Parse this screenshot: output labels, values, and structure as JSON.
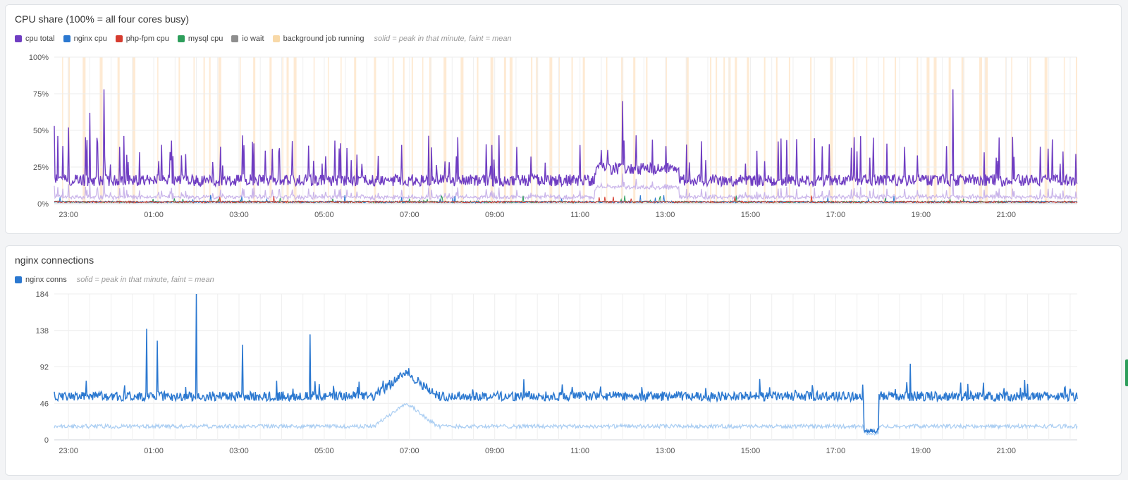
{
  "chart_data": [
    {
      "type": "line",
      "title": "CPU share (100% = all four cores busy)",
      "legend_note": "solid = peak in that minute, faint = mean",
      "legend": [
        {
          "name": "cpu total",
          "color": "#6f3dc2"
        },
        {
          "name": "nginx cpu",
          "color": "#2b78d0"
        },
        {
          "name": "php-fpm cpu",
          "color": "#d63c2f"
        },
        {
          "name": "mysql cpu",
          "color": "#2e9e5b"
        },
        {
          "name": "io wait",
          "color": "#8e8e8e"
        },
        {
          "name": "background job running",
          "color": "#f8d9a8"
        }
      ],
      "x_ticks": [
        "23:00",
        "01:00",
        "03:00",
        "05:00",
        "07:00",
        "09:00",
        "11:00",
        "13:00",
        "15:00",
        "17:00",
        "19:00",
        "21:00"
      ],
      "y_ticks": [
        "0%",
        "25%",
        "50%",
        "75%",
        "100%"
      ],
      "ylim": [
        0,
        100
      ],
      "grid": true,
      "legend_position": "top-left",
      "series_peak_spikes": [
        {
          "time": "23:00",
          "value": 52
        },
        {
          "time": "23:30",
          "value": 62
        },
        {
          "time": "23:50",
          "value": 78
        },
        {
          "time": "11:00",
          "value": 40
        },
        {
          "time": "12:00",
          "value": 70
        },
        {
          "time": "19:45",
          "value": 78
        },
        {
          "time": "22:40",
          "value": 53
        }
      ]
    },
    {
      "type": "line",
      "title": "nginx connections",
      "legend_note": "solid = peak in that minute, faint = mean",
      "legend": [
        {
          "name": "nginx conns",
          "color": "#2b78d0"
        }
      ],
      "x_ticks": [
        "23:00",
        "01:00",
        "03:00",
        "05:00",
        "07:00",
        "09:00",
        "11:00",
        "13:00",
        "15:00",
        "17:00",
        "19:00",
        "21:00"
      ],
      "y_ticks": [
        "0",
        "46",
        "92",
        "138",
        "184"
      ],
      "ylim": [
        0,
        184
      ],
      "grid": true,
      "legend_position": "top-left",
      "peak_spikes": [
        {
          "time": "00:50",
          "value": 140
        },
        {
          "time": "01:05",
          "value": 125
        },
        {
          "time": "02:00",
          "value": 184
        },
        {
          "time": "03:05",
          "value": 120
        },
        {
          "time": "04:40",
          "value": 133
        },
        {
          "time": "06:55",
          "value": 88
        },
        {
          "time": "17:50",
          "value": 10
        },
        {
          "time": "18:45",
          "value": 96
        }
      ],
      "baseline_peak": 55,
      "baseline_mean": 17
    }
  ]
}
